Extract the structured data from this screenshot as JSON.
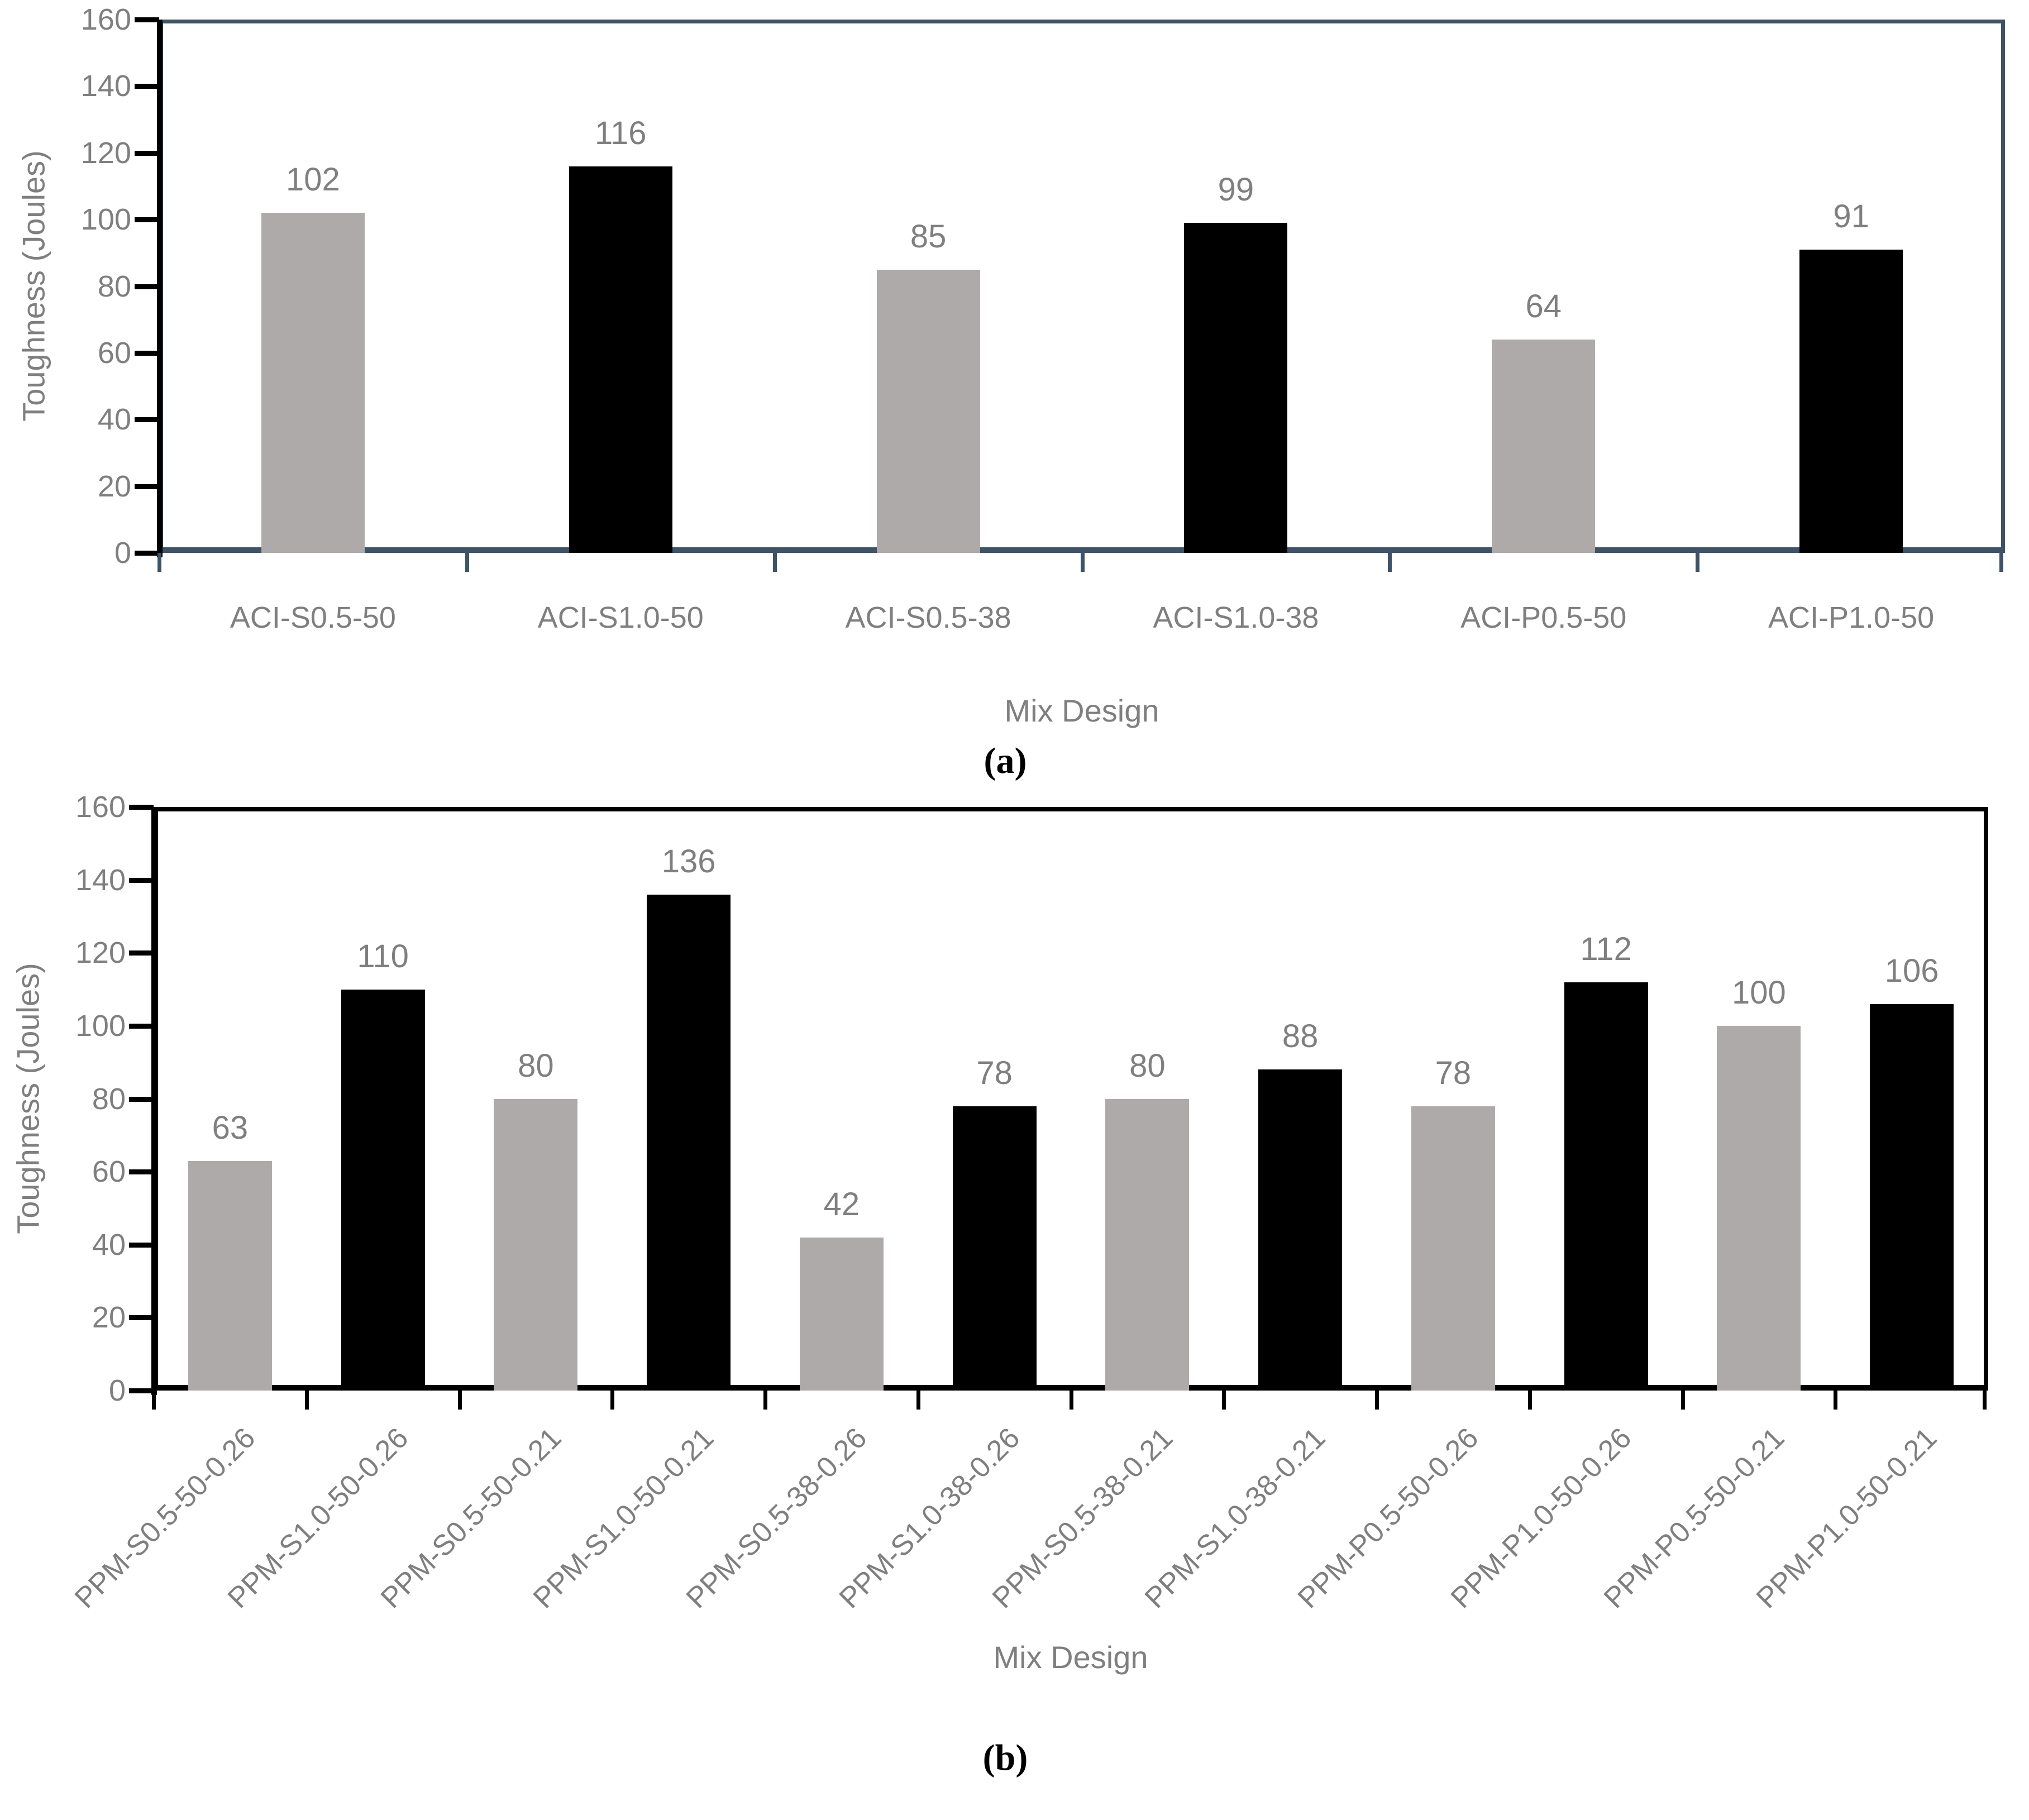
{
  "styles": {
    "text_gray": "#7F7F7F",
    "background": "#FFFFFF",
    "bar_gray": "#AEAAAA",
    "bar_black": "#000000",
    "axis_color_a": "#3E5368",
    "axis_color_b": "#000000"
  },
  "chart_data": [
    {
      "type": "bar",
      "panel": "a",
      "caption": "(a)",
      "title": "",
      "xlabel": "Mix Design",
      "ylabel": "Toughness (Joules)",
      "ylim": [
        0,
        160
      ],
      "ytick_step": 20,
      "grid": false,
      "legend": null,
      "x_label_rotation": 0,
      "axis_color": "#3E5368",
      "categories": [
        "ACI-S0.5-50",
        "ACI-S1.0-50",
        "ACI-S0.5-38",
        "ACI-S1.0-38",
        "ACI-P0.5-50",
        "ACI-P1.0-50"
      ],
      "values": [
        102,
        116,
        85,
        99,
        64,
        91
      ],
      "bar_colors": [
        "#AEAAAA",
        "#000000",
        "#AEAAAA",
        "#000000",
        "#AEAAAA",
        "#000000"
      ]
    },
    {
      "type": "bar",
      "panel": "b",
      "caption": "(b)",
      "title": "",
      "xlabel": "Mix Design",
      "ylabel": "Toughness (Joules)",
      "ylim": [
        0,
        160
      ],
      "ytick_step": 20,
      "grid": false,
      "legend": null,
      "x_label_rotation": 45,
      "axis_color": "#000000",
      "categories": [
        "PPM-S0.5-50-0.26",
        "PPM-S1.0-50-0.26",
        "PPM-S0.5-50-0.21",
        "PPM-S1.0-50-0.21",
        "PPM-S0.5-38-0.26",
        "PPM-S1.0-38-0.26",
        "PPM-S0.5-38-0.21",
        "PPM-S1.0-38-0.21",
        "PPM-P0.5-50-0.26",
        "PPM-P1.0-50-0.26",
        "PPM-P0.5-50-0.21",
        "PPM-P1.0-50-0.21"
      ],
      "values": [
        63,
        110,
        80,
        136,
        42,
        78,
        80,
        88,
        78,
        112,
        100,
        106
      ],
      "bar_colors": [
        "#AEAAAA",
        "#000000",
        "#AEAAAA",
        "#000000",
        "#AEAAAA",
        "#000000",
        "#AEAAAA",
        "#000000",
        "#AEAAAA",
        "#000000",
        "#AEAAAA",
        "#000000"
      ]
    }
  ]
}
